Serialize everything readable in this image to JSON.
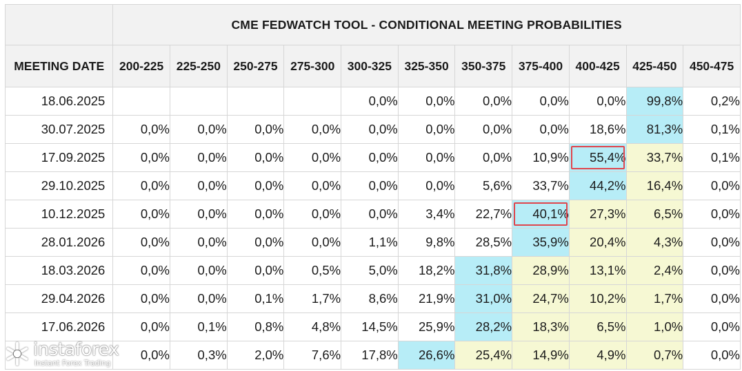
{
  "chart_data": {
    "type": "table",
    "title": "CME FEDWATCH TOOL - CONDITIONAL MEETING PROBABILITIES",
    "row_header": "MEETING DATE",
    "columns": [
      "200-225",
      "225-250",
      "250-275",
      "275-300",
      "300-325",
      "325-350",
      "350-375",
      "375-400",
      "400-425",
      "425-450",
      "450-475"
    ],
    "rows": [
      {
        "date": "18.06.2025",
        "values": [
          "",
          "",
          "",
          "",
          "0,0%",
          "0,0%",
          "0,0%",
          "0,0%",
          "0,0%",
          "99,8%",
          "0,2%"
        ],
        "blue": [
          9
        ],
        "yellow": [],
        "boxed": []
      },
      {
        "date": "30.07.2025",
        "values": [
          "0,0%",
          "0,0%",
          "0,0%",
          "0,0%",
          "0,0%",
          "0,0%",
          "0,0%",
          "0,0%",
          "18,6%",
          "81,3%",
          "0,1%"
        ],
        "blue": [
          9
        ],
        "yellow": [],
        "boxed": []
      },
      {
        "date": "17.09.2025",
        "values": [
          "0,0%",
          "0,0%",
          "0,0%",
          "0,0%",
          "0,0%",
          "0,0%",
          "0,0%",
          "10,9%",
          "55,4%",
          "33,7%",
          "0,1%"
        ],
        "blue": [
          8
        ],
        "yellow": [
          9
        ],
        "boxed": [
          8
        ]
      },
      {
        "date": "29.10.2025",
        "values": [
          "0,0%",
          "0,0%",
          "0,0%",
          "0,0%",
          "0,0%",
          "0,0%",
          "5,6%",
          "33,7%",
          "44,2%",
          "16,4%",
          "0,0%"
        ],
        "blue": [
          8
        ],
        "yellow": [
          9
        ],
        "boxed": []
      },
      {
        "date": "10.12.2025",
        "values": [
          "0,0%",
          "0,0%",
          "0,0%",
          "0,0%",
          "0,0%",
          "3,4%",
          "22,7%",
          "40,1%",
          "27,3%",
          "6,5%",
          "0,0%"
        ],
        "blue": [
          7
        ],
        "yellow": [
          8,
          9
        ],
        "boxed": [
          7
        ]
      },
      {
        "date": "28.01.2026",
        "values": [
          "0,0%",
          "0,0%",
          "0,0%",
          "0,0%",
          "1,1%",
          "9,8%",
          "28,5%",
          "35,9%",
          "20,4%",
          "4,3%",
          "0,0%"
        ],
        "blue": [
          7
        ],
        "yellow": [
          8,
          9
        ],
        "boxed": []
      },
      {
        "date": "18.03.2026",
        "values": [
          "0,0%",
          "0,0%",
          "0,0%",
          "0,5%",
          "5,0%",
          "18,2%",
          "31,8%",
          "28,9%",
          "13,1%",
          "2,4%",
          "0,0%"
        ],
        "blue": [
          6
        ],
        "yellow": [
          7,
          8,
          9
        ],
        "boxed": []
      },
      {
        "date": "29.04.2026",
        "values": [
          "0,0%",
          "0,0%",
          "0,1%",
          "1,7%",
          "8,6%",
          "21,9%",
          "31,0%",
          "24,7%",
          "10,2%",
          "1,7%",
          "0,0%"
        ],
        "blue": [
          6
        ],
        "yellow": [
          7,
          8,
          9
        ],
        "boxed": []
      },
      {
        "date": "17.06.2026",
        "values": [
          "0,0%",
          "0,1%",
          "0,8%",
          "4,8%",
          "14,5%",
          "25,9%",
          "28,2%",
          "18,3%",
          "6,5%",
          "1,0%",
          "0,0%"
        ],
        "blue": [
          6
        ],
        "yellow": [
          7,
          8,
          9
        ],
        "boxed": []
      },
      {
        "date": "",
        "values": [
          "0,0%",
          "0,3%",
          "2,0%",
          "7,6%",
          "17,8%",
          "26,6%",
          "25,4%",
          "14,9%",
          "4,9%",
          "0,7%",
          "0,0%"
        ],
        "blue": [
          5
        ],
        "yellow": [
          6,
          7,
          8,
          9
        ],
        "boxed": []
      }
    ]
  },
  "colors": {
    "header_bg": "#f2f2f2",
    "highlight_blue": "#b7edf7",
    "highlight_yellow": "#f6f8d3",
    "box_red": "#e0444b",
    "grid": "#d6d6d6"
  },
  "watermark": {
    "name": "instaforex",
    "tagline": "Instant Forex Trading",
    "icon": "instaforex-logo-icon"
  }
}
